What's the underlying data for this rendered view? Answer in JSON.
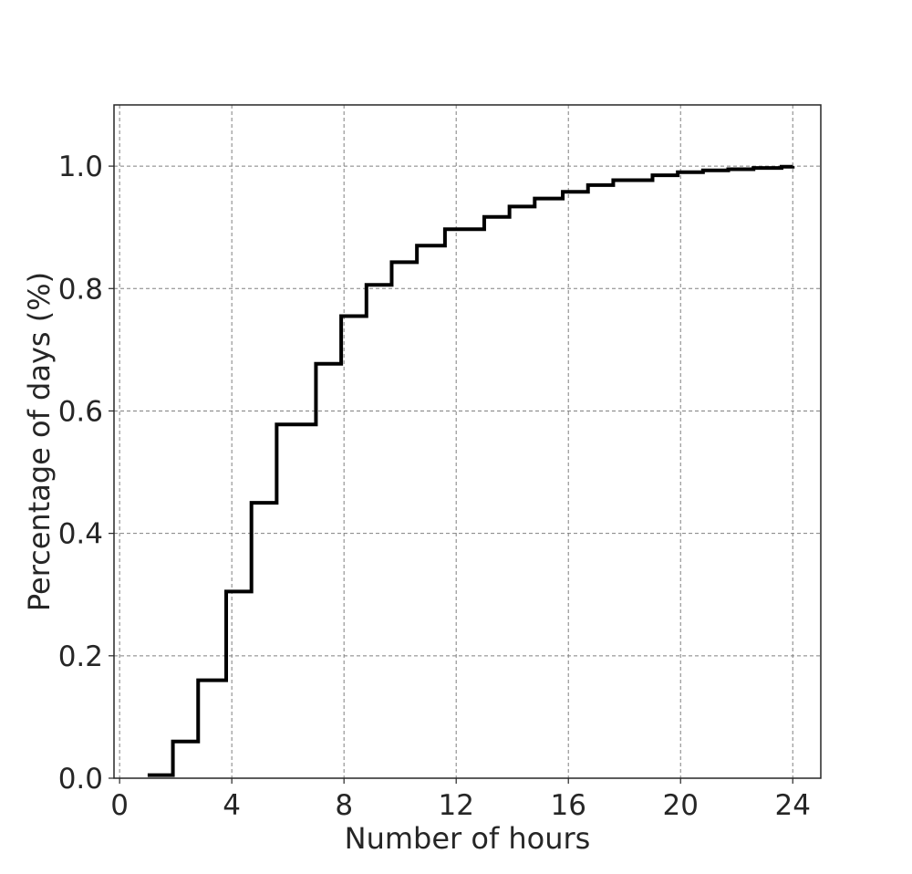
{
  "chart_data": {
    "type": "line",
    "step": true,
    "xlabel": "Number of hours",
    "ylabel": "Percentage of days (%)",
    "xlim": [
      -0.2,
      25
    ],
    "ylim": [
      0,
      1.1
    ],
    "xticks": [
      0,
      4,
      8,
      12,
      16,
      20,
      24
    ],
    "xtick_labels": [
      "0",
      "4",
      "8",
      "12",
      "16",
      "20",
      "24"
    ],
    "yticks": [
      0.0,
      0.2,
      0.4,
      0.6,
      0.8,
      1.0
    ],
    "ytick_labels": [
      "0.0",
      "0.2",
      "0.4",
      "0.6",
      "0.8",
      "1.0"
    ],
    "grid": true,
    "line_color": "#000000",
    "series": [
      {
        "x": [
          1.0,
          1.9,
          2.8,
          3.8,
          4.7,
          5.6,
          7.0,
          7.9,
          8.8,
          9.7,
          10.6,
          11.6,
          13.0,
          13.9,
          14.8,
          15.8,
          16.7,
          17.6,
          19.0,
          19.9,
          20.8,
          21.7,
          22.6,
          23.6,
          24.0
        ],
        "y": [
          0.005,
          0.06,
          0.16,
          0.305,
          0.45,
          0.578,
          0.677,
          0.755,
          0.806,
          0.843,
          0.87,
          0.897,
          0.917,
          0.934,
          0.947,
          0.958,
          0.969,
          0.977,
          0.985,
          0.99,
          0.993,
          0.995,
          0.997,
          0.999,
          1.0
        ]
      }
    ]
  }
}
